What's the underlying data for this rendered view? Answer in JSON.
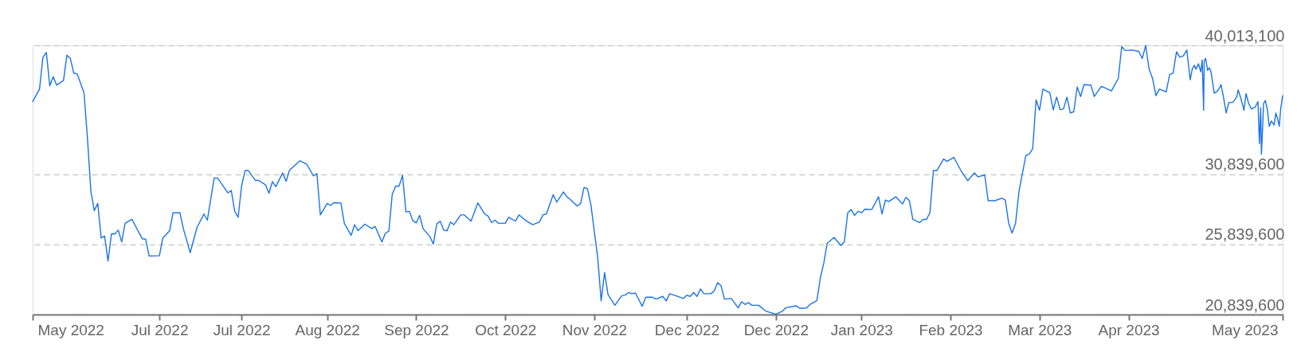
{
  "chart_data": {
    "type": "line",
    "grid": "y",
    "line_style": "solid",
    "xlim": [
      "2022-05-28",
      "2023-05-28"
    ],
    "xticks": [
      {
        "value": "2022-05-28",
        "label": "May 2022"
      },
      {
        "value": "2022-07-04",
        "label": "Jul 2022"
      },
      {
        "value": "2022-07-28",
        "label": "Jul 2022"
      },
      {
        "value": "2022-08-22",
        "label": "Aug 2022"
      },
      {
        "value": "2022-09-17",
        "label": "Sep 2022"
      },
      {
        "value": "2022-10-13",
        "label": "Oct 2022"
      },
      {
        "value": "2022-11-08",
        "label": "Nov 2022"
      },
      {
        "value": "2022-12-05",
        "label": "Dec 2022"
      },
      {
        "value": "2022-12-31",
        "label": "Dec 2022"
      },
      {
        "value": "2023-01-25",
        "label": "Jan 2023"
      },
      {
        "value": "2023-02-20",
        "label": "Feb 2023"
      },
      {
        "value": "2023-03-18",
        "label": "Mar 2023"
      },
      {
        "value": "2023-04-13",
        "label": "Apr 2023"
      },
      {
        "value": "2023-05-28",
        "label": "May 2023"
      }
    ],
    "ylim": [
      20839600,
      40013100
    ],
    "yticks": [
      {
        "value": 20839600,
        "label": "20,839,600"
      },
      {
        "value": 25839600,
        "label": "25,839,600"
      },
      {
        "value": 30839600,
        "label": "30,839,600"
      },
      {
        "value": 40013100,
        "label": "40,013,100"
      }
    ],
    "x": [
      "2022-05-28",
      "2022-05-30",
      "2022-05-31",
      "2022-06-01",
      "2022-06-02",
      "2022-06-03",
      "2022-06-04",
      "2022-06-06",
      "2022-06-07",
      "2022-06-08",
      "2022-06-09",
      "2022-06-10",
      "2022-06-12",
      "2022-06-13",
      "2022-06-14",
      "2022-06-15",
      "2022-06-16",
      "2022-06-17",
      "2022-06-18",
      "2022-06-19",
      "2022-06-20",
      "2022-06-21",
      "2022-06-22",
      "2022-06-23",
      "2022-06-24",
      "2022-06-26",
      "2022-06-29",
      "2022-06-30",
      "2022-07-01",
      "2022-07-04",
      "2022-07-05",
      "2022-07-07",
      "2022-07-08",
      "2022-07-10",
      "2022-07-11",
      "2022-07-13",
      "2022-07-15",
      "2022-07-17",
      "2022-07-18",
      "2022-07-20",
      "2022-07-21",
      "2022-07-24",
      "2022-07-25",
      "2022-07-26",
      "2022-07-27",
      "2022-07-28",
      "2022-07-29",
      "2022-07-30",
      "2022-08-01",
      "2022-08-02",
      "2022-08-04",
      "2022-08-05",
      "2022-08-06",
      "2022-08-07",
      "2022-08-09",
      "2022-08-10",
      "2022-08-11",
      "2022-08-14",
      "2022-08-16",
      "2022-08-18",
      "2022-08-19",
      "2022-08-20",
      "2022-08-22",
      "2022-08-23",
      "2022-08-24",
      "2022-08-26",
      "2022-08-27",
      "2022-08-29",
      "2022-08-30",
      "2022-08-31",
      "2022-09-02",
      "2022-09-04",
      "2022-09-05",
      "2022-09-07",
      "2022-09-08",
      "2022-09-09",
      "2022-09-10",
      "2022-09-11",
      "2022-09-12",
      "2022-09-13",
      "2022-09-14",
      "2022-09-15",
      "2022-09-16",
      "2022-09-17",
      "2022-09-18",
      "2022-09-19",
      "2022-09-21",
      "2022-09-22",
      "2022-09-23",
      "2022-09-24",
      "2022-09-25",
      "2022-09-26",
      "2022-09-27",
      "2022-09-28",
      "2022-09-30",
      "2022-10-01",
      "2022-10-03",
      "2022-10-05",
      "2022-10-07",
      "2022-10-08",
      "2022-10-09",
      "2022-10-10",
      "2022-10-11",
      "2022-10-13",
      "2022-10-14",
      "2022-10-16",
      "2022-10-17",
      "2022-10-19",
      "2022-10-21",
      "2022-10-23",
      "2022-10-24",
      "2022-10-25",
      "2022-10-27",
      "2022-10-28",
      "2022-10-30",
      "2022-10-31",
      "2022-11-01",
      "2022-11-03",
      "2022-11-04",
      "2022-11-05",
      "2022-11-06",
      "2022-11-07",
      "2022-11-09",
      "2022-11-10",
      "2022-11-11",
      "2022-11-12",
      "2022-11-14",
      "2022-11-16",
      "2022-11-17",
      "2022-11-18",
      "2022-11-19",
      "2022-11-20",
      "2022-11-22",
      "2022-11-23",
      "2022-11-25",
      "2022-11-26",
      "2022-11-28",
      "2022-11-29",
      "2022-11-30",
      "2022-12-02",
      "2022-12-04",
      "2022-12-05",
      "2022-12-06",
      "2022-12-07",
      "2022-12-08",
      "2022-12-09",
      "2022-12-10",
      "2022-12-12",
      "2022-12-13",
      "2022-12-14",
      "2022-12-15",
      "2022-12-16",
      "2022-12-18",
      "2022-12-20",
      "2022-12-21",
      "2022-12-22",
      "2022-12-23",
      "2022-12-24",
      "2022-12-26",
      "2022-12-28",
      "2022-12-31",
      "2023-01-02",
      "2023-01-03",
      "2023-01-06",
      "2023-01-07",
      "2023-01-09",
      "2023-01-10",
      "2023-01-12",
      "2023-01-13",
      "2023-01-14",
      "2023-01-15",
      "2023-01-17",
      "2023-01-19",
      "2023-01-20",
      "2023-01-21",
      "2023-01-22",
      "2023-01-23",
      "2023-01-24",
      "2023-01-25",
      "2023-01-26",
      "2023-01-28",
      "2023-01-30",
      "2023-01-31",
      "2023-02-01",
      "2023-02-02",
      "2023-02-04",
      "2023-02-06",
      "2023-02-07",
      "2023-02-08",
      "2023-02-09",
      "2023-02-11",
      "2023-02-12",
      "2023-02-13",
      "2023-02-14",
      "2023-02-15",
      "2023-02-16",
      "2023-02-18",
      "2023-02-19",
      "2023-02-21",
      "2023-02-23",
      "2023-02-25",
      "2023-02-27",
      "2023-02-28",
      "2023-03-02",
      "2023-03-03",
      "2023-03-05",
      "2023-03-07",
      "2023-03-08",
      "2023-03-09",
      "2023-03-10",
      "2023-03-11",
      "2023-03-12",
      "2023-03-14",
      "2023-03-15",
      "2023-03-16",
      "2023-03-17",
      "2023-03-18",
      "2023-03-19",
      "2023-03-21",
      "2023-03-22",
      "2023-03-23",
      "2023-03-24",
      "2023-03-25",
      "2023-03-26",
      "2023-03-27",
      "2023-03-28",
      "2023-03-29",
      "2023-03-30",
      "2023-03-31",
      "2023-04-02",
      "2023-04-03",
      "2023-04-05",
      "2023-04-06",
      "2023-04-08",
      "2023-04-10",
      "2023-04-11",
      "2023-04-12",
      "2023-04-14",
      "2023-04-16",
      "2023-04-17",
      "2023-04-18",
      "2023-04-19",
      "2023-04-20",
      "2023-04-21",
      "2023-04-22",
      "2023-04-24",
      "2023-04-25",
      "2023-04-26",
      "2023-04-27",
      "2023-04-28",
      "2023-04-29",
      "2023-04-30",
      "2023-05-01T00:00",
      "2023-05-01T14:00",
      "2023-05-02T05:00",
      "2023-05-02T17:00",
      "2023-05-03T10:00",
      "2023-05-04T02:00",
      "2023-05-04T12:00",
      "2023-05-04T22:00",
      "2023-05-05T02:00",
      "2023-05-05T12:00",
      "2023-05-06T02:00",
      "2023-05-06T14:00",
      "2023-05-07T02:00",
      "2023-05-08T00:00",
      "2023-05-08T19:00",
      "2023-05-09T14:00",
      "2023-05-10T00:00",
      "2023-05-10T17:00",
      "2023-05-11T12:00",
      "2023-05-12T07:00",
      "2023-05-13T10:00",
      "2023-05-14T14:00",
      "2023-05-15T00:00",
      "2023-05-15T19:00",
      "2023-05-16T17:00",
      "2023-05-17T07:00",
      "2023-05-18T02:00",
      "2023-05-18T22:00",
      "2023-05-20T00:00",
      "2023-05-20T19:00",
      "2023-05-21T05:00",
      "2023-05-21T14:00",
      "2023-05-21T19:00",
      "2023-05-22T02:00",
      "2023-05-22T10:00",
      "2023-05-22T22:00",
      "2023-05-23T12:00",
      "2023-05-24T02:00",
      "2023-05-24T17:00",
      "2023-05-25T12:00",
      "2023-05-26T00:00",
      "2023-05-26T14:00",
      "2023-05-27T00:00",
      "2023-05-27T10:00",
      "2023-05-28T00:00"
    ],
    "series": [
      {
        "color": "#1a73e8",
        "values": [
          36010000,
          36900000,
          39170000,
          39510000,
          37130000,
          37790000,
          37180000,
          37510000,
          39320000,
          39080000,
          38040000,
          37980000,
          36620000,
          33400000,
          29610000,
          28240000,
          28760000,
          26290000,
          26430000,
          24650000,
          26580000,
          26580000,
          26860000,
          26010000,
          27340000,
          27620000,
          26240000,
          26200000,
          25010000,
          25030000,
          26290000,
          26810000,
          28090000,
          28090000,
          26960000,
          25250000,
          27050000,
          28000000,
          27560000,
          30560000,
          30560000,
          29510000,
          29670000,
          28190000,
          27770000,
          29990000,
          31090000,
          31090000,
          30400000,
          30400000,
          30080000,
          29480000,
          30310000,
          29950000,
          30930000,
          30330000,
          31120000,
          31790000,
          31560000,
          30710000,
          30880000,
          27940000,
          28760000,
          28610000,
          28810000,
          28790000,
          27340000,
          26480000,
          27240000,
          26810000,
          27280000,
          26960000,
          27110000,
          26010000,
          26640000,
          26770000,
          29420000,
          29990000,
          29990000,
          30750000,
          28150000,
          28190000,
          27530000,
          27370000,
          27900000,
          26960000,
          26390000,
          25860000,
          27300000,
          27490000,
          26860000,
          26810000,
          27430000,
          27240000,
          27940000,
          27940000,
          27490000,
          28790000,
          28000000,
          27850000,
          27390000,
          27560000,
          27340000,
          27340000,
          27770000,
          27490000,
          27940000,
          27530000,
          27240000,
          27430000,
          27940000,
          28000000,
          29380000,
          28850000,
          29570000,
          29230000,
          29040000,
          28570000,
          28760000,
          29890000,
          29800000,
          28660000,
          24870000,
          21810000,
          23830000,
          22260000,
          21500000,
          22180000,
          22220000,
          22410000,
          22320000,
          22370000,
          21430000,
          22070000,
          22070000,
          21940000,
          22130000,
          21810000,
          22320000,
          22170000,
          21980000,
          22220000,
          22130000,
          22410000,
          22130000,
          22660000,
          22320000,
          22320000,
          22510000,
          23110000,
          22890000,
          21940000,
          21980000,
          21310000,
          21750000,
          21560000,
          21690000,
          21500000,
          21500000,
          21090000,
          20860000,
          21090000,
          21330000,
          21460000,
          21280000,
          21310000,
          21560000,
          21840000,
          23450000,
          24490000,
          25920000,
          26330000,
          25760000,
          26010000,
          28090000,
          28320000,
          27900000,
          28190000,
          28090000,
          28340000,
          28320000,
          29230000,
          28000000,
          29000000,
          28890000,
          29230000,
          28720000,
          29190000,
          28950000,
          27620000,
          27390000,
          27620000,
          27620000,
          28090000,
          31090000,
          31090000,
          31920000,
          31750000,
          32030000,
          31120000,
          30370000,
          30930000,
          30650000,
          30780000,
          28950000,
          28950000,
          29130000,
          29000000,
          27340000,
          26640000,
          27340000,
          29610000,
          32170000,
          32260000,
          32640000,
          36140000,
          35390000,
          36900000,
          36650000,
          35420000,
          36330000,
          35440000,
          35480000,
          36330000,
          35200000,
          35290000,
          37050000,
          36370000,
          37220000,
          37180000,
          36370000,
          37090000,
          37000000,
          36770000,
          37660000,
          39930000,
          39650000,
          39680000,
          39590000,
          39080000,
          40000000,
          38320000,
          37660000,
          36430000,
          36900000,
          36710000,
          37940000,
          38040000,
          39550000,
          39170000,
          39270000,
          39680000,
          37560000,
          38320000,
          38600000,
          38320000,
          38700000,
          38130000,
          38980000,
          35390000,
          38890000,
          39080000,
          38230000,
          38420000,
          38130000,
          36620000,
          36710000,
          37000000,
          37220000,
          36330000,
          35200000,
          35950000,
          35950000,
          36330000,
          36840000,
          36240000,
          35390000,
          36580000,
          35860000,
          35480000,
          35630000,
          36010000,
          33020000,
          35570000,
          32260000,
          33780000,
          35860000,
          36090000,
          35480000,
          34250000,
          34630000,
          34340000,
          35200000,
          34720000,
          34250000,
          35480000,
          36430000
        ]
      }
    ]
  }
}
